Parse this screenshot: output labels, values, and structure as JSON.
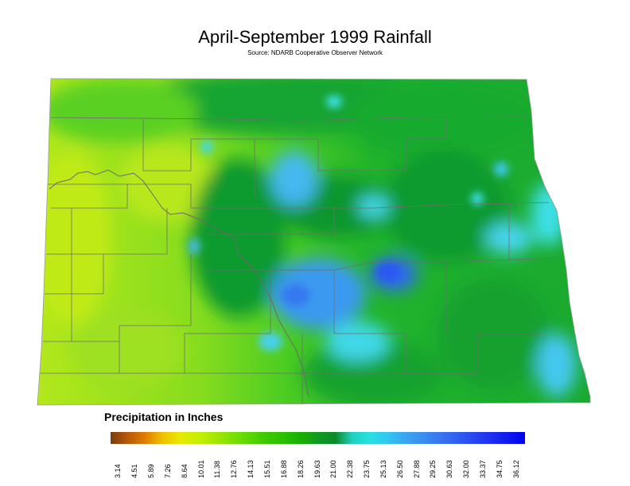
{
  "title": "April-September 1999 Rainfall",
  "subtitle": "Source: NDARB Cooperative Observer Network",
  "legend": {
    "title": "Precipitation in Inches",
    "ticks": [
      "3.14",
      "4.51",
      "5.89",
      "7.26",
      "8.64",
      "10.01",
      "11.38",
      "12.76",
      "14.13",
      "15.51",
      "16.88",
      "18.26",
      "19.63",
      "21.00",
      "22.38",
      "23.75",
      "25.13",
      "26.50",
      "27.88",
      "29.25",
      "30.63",
      "32.00",
      "33.37",
      "34.75",
      "36.12"
    ],
    "colors": [
      "#7a3d0d",
      "#b85a08",
      "#e07e00",
      "#f0c000",
      "#e8e800",
      "#c8f000",
      "#a8e800",
      "#7ee000",
      "#5ad800",
      "#3ec800",
      "#28c000",
      "#18b000",
      "#109a20",
      "#0a8a28",
      "#20d0c0",
      "#28e0e0",
      "#30c8f0",
      "#3aa8f0",
      "#3a90f0",
      "#3878f0",
      "#3060f0",
      "#2848f0",
      "#2030f0",
      "#1018f0",
      "#0000f0"
    ]
  },
  "map_colors": {
    "dry_west": "#b6e81a",
    "mid_green": "#5cd41e",
    "green": "#28c02a",
    "dark_green": "#0e9a2e",
    "cyan": "#3ee0e8",
    "light_blue": "#44c0f0",
    "blue": "#3a8cf0",
    "deep_blue": "#2e6af0",
    "county_line": "#6e6e6e"
  }
}
